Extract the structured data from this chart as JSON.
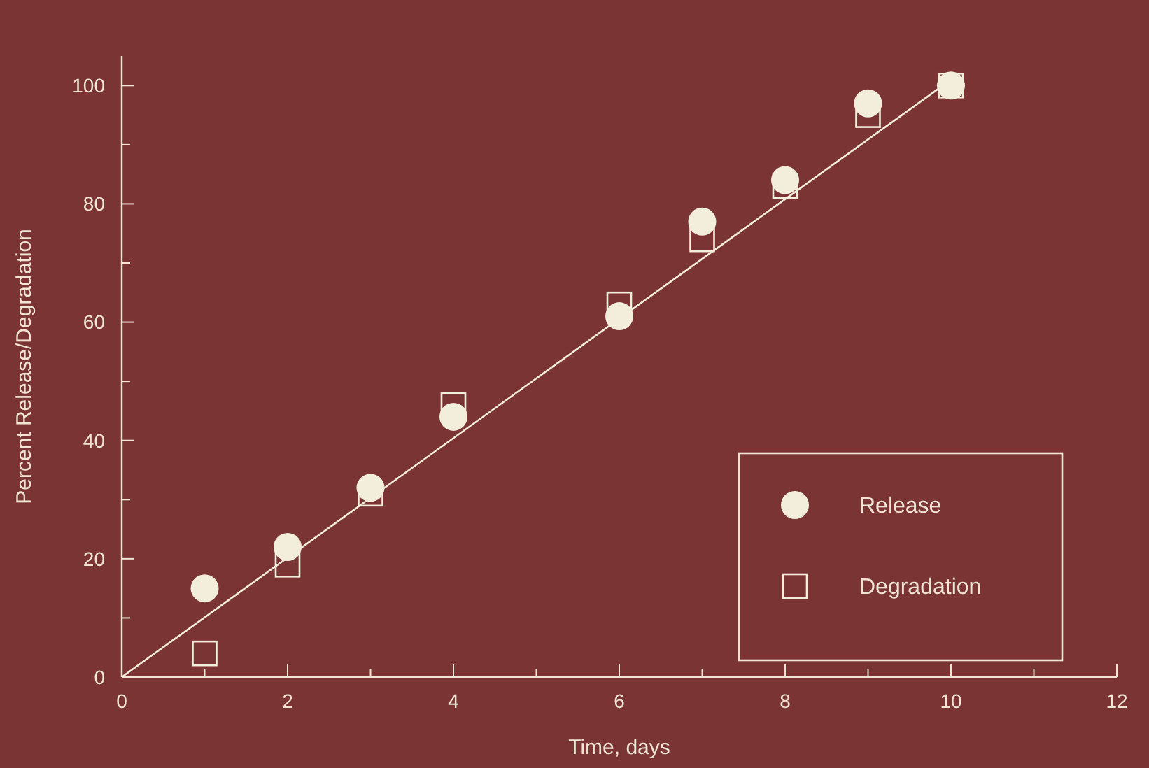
{
  "chart_data": {
    "type": "scatter",
    "xlabel": "Time, days",
    "ylabel": "Percent Release/Degradation",
    "xlim": [
      0,
      12
    ],
    "ylim": [
      0,
      105
    ],
    "xticks": [
      0,
      {
        "value": 1,
        "label": null
      },
      2,
      {
        "value": 3,
        "label": null
      },
      4,
      {
        "value": 5,
        "label": null
      },
      6,
      {
        "value": 7,
        "label": null
      },
      8,
      {
        "value": 9,
        "label": null
      },
      10,
      {
        "value": 11,
        "label": null
      },
      12
    ],
    "yticks": [
      0,
      {
        "value": 10,
        "label": null
      },
      20,
      {
        "value": 30,
        "label": null
      },
      40,
      {
        "value": 50,
        "label": null
      },
      60,
      {
        "value": 70,
        "label": null
      },
      80,
      {
        "value": 90,
        "label": null
      },
      100
    ],
    "legend": "bottom right",
    "series": [
      {
        "name": "Release",
        "color": "#f3eedc",
        "marker": "circle",
        "x": [
          1,
          2,
          3,
          4,
          6,
          7,
          8,
          9,
          10
        ],
        "values": [
          15,
          22,
          32,
          44,
          61,
          77,
          84,
          97,
          100
        ]
      },
      {
        "name": "Degradation",
        "color": "#f3eedc",
        "marker": "square",
        "x": [
          1,
          2,
          3,
          4,
          6,
          7,
          8,
          9,
          10
        ],
        "values": [
          4,
          19,
          31,
          46,
          63,
          74,
          83,
          95,
          100
        ]
      },
      {
        "type": "line",
        "color": "#f3eedc",
        "marker": "none",
        "x": [
          0,
          10.1
        ],
        "values": [
          0,
          102
        ]
      }
    ]
  }
}
